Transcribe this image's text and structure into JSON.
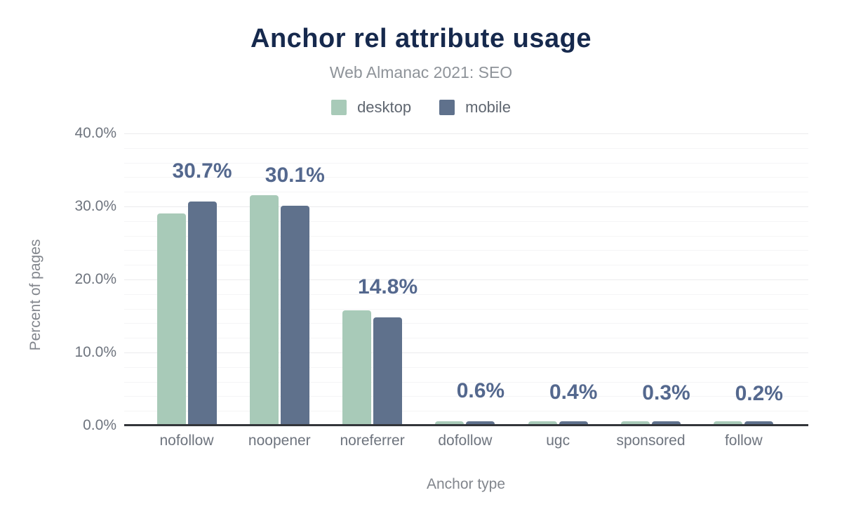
{
  "chart_data": {
    "type": "bar",
    "title": "Anchor rel attribute usage",
    "subtitle": "Web Almanac 2021: SEO",
    "xlabel": "Anchor type",
    "ylabel": "Percent of pages",
    "categories": [
      "nofollow",
      "noopener",
      "noreferrer",
      "dofollow",
      "ugc",
      "sponsored",
      "follow"
    ],
    "series": [
      {
        "name": "desktop",
        "color": "#a8cab8",
        "values": [
          29.0,
          31.5,
          15.8,
          0.5,
          0.4,
          0.3,
          0.2
        ]
      },
      {
        "name": "mobile",
        "color": "#5f718c",
        "values": [
          30.7,
          30.1,
          14.8,
          0.6,
          0.4,
          0.3,
          0.2
        ]
      }
    ],
    "data_labels": {
      "annotated_series": "mobile",
      "values": [
        "30.7%",
        "30.1%",
        "14.8%",
        "0.6%",
        "0.4%",
        "0.3%",
        "0.2%"
      ]
    },
    "y_ticks": [
      {
        "value": 0,
        "label": "0.0%"
      },
      {
        "value": 10,
        "label": "10.0%"
      },
      {
        "value": 20,
        "label": "20.0%"
      },
      {
        "value": 30,
        "label": "30.0%"
      },
      {
        "value": 40,
        "label": "40.0%"
      }
    ],
    "ylim": [
      0,
      40
    ],
    "grid": true,
    "minor_grid_step_pct": 2,
    "major_grid_step_pct": 10,
    "legend_position": "top"
  },
  "colors": {
    "title": "#16294d",
    "subtitle": "#8e9399",
    "data_label": "#54688e",
    "desktop_bar": "#a8cab8",
    "mobile_bar": "#5f718c",
    "axis_line": "#33353a"
  }
}
